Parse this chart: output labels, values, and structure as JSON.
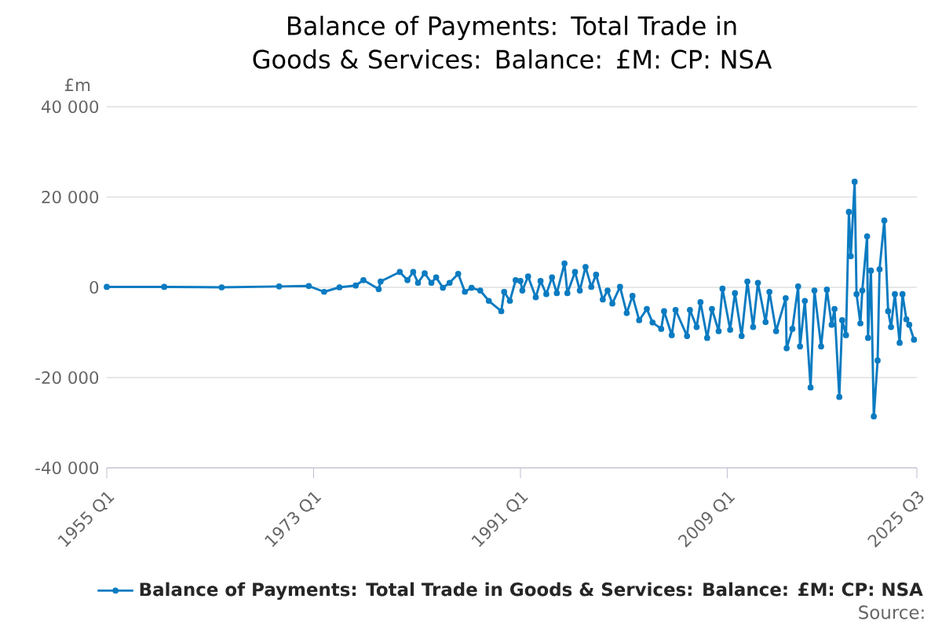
{
  "chart_data": {
    "type": "line",
    "title": "Balance of Payments: Total Trade in Goods & Services: Balance: £M: CP: NSA",
    "ylabel": "£m",
    "annotations": [
      "Source:"
    ],
    "x": [
      "1955-01",
      "1960-01",
      "1965-01",
      "1970-01",
      "1972-08",
      "1973-12",
      "1975-04",
      "1976-09",
      "1977-05",
      "1978-09",
      "1978-11",
      "1980-07",
      "1981-03",
      "1981-09",
      "1982-02",
      "1982-09",
      "1983-04",
      "1983-09",
      "1984-04",
      "1984-11",
      "1985-08",
      "1986-03",
      "1986-10",
      "1987-07",
      "1988-04",
      "1989-05",
      "1989-08",
      "1990-02",
      "1990-08",
      "1991-01",
      "1991-03",
      "1991-09",
      "1992-05",
      "1992-10",
      "1993-04",
      "1993-10",
      "1994-03",
      "1994-11",
      "1995-02",
      "1995-10",
      "1996-03",
      "1996-09",
      "1997-03",
      "1997-08",
      "1998-03",
      "1998-08",
      "1999-01",
      "1999-09",
      "2000-04",
      "2000-10",
      "2001-05",
      "2002-01",
      "2002-07",
      "2003-04",
      "2003-07",
      "2004-03",
      "2004-07",
      "2005-07",
      "2005-10",
      "2006-05",
      "2006-09",
      "2007-04",
      "2007-09",
      "2008-04",
      "2008-08",
      "2009-04",
      "2009-09",
      "2010-04",
      "2010-10",
      "2011-04",
      "2011-09",
      "2012-05",
      "2012-09",
      "2013-04",
      "2014-02",
      "2014-03",
      "2014-09",
      "2015-03",
      "2015-05",
      "2015-10",
      "2016-04",
      "2016-08",
      "2017-03",
      "2017-09",
      "2018-02",
      "2018-05",
      "2018-10",
      "2019-01",
      "2019-05",
      "2019-08",
      "2019-10",
      "2020-02",
      "2020-04",
      "2020-08",
      "2020-10",
      "2021-03",
      "2021-04",
      "2021-07",
      "2021-10",
      "2022-02",
      "2022-04",
      "2022-09",
      "2023-01",
      "2023-04",
      "2023-08",
      "2024-01",
      "2024-04",
      "2024-08",
      "2024-11",
      "2025-04"
    ],
    "series": [
      {
        "name": "Balance of Payments: Total Trade in Goods & Services: Balance: £M: CP: NSA",
        "color": "#0b7bc1",
        "values": [
          100,
          100,
          0,
          200,
          300,
          -1000,
          0,
          400,
          1600,
          -400,
          1300,
          3400,
          1600,
          3400,
          1000,
          3100,
          1000,
          2200,
          -100,
          1000,
          3000,
          -1000,
          -100,
          -700,
          -3000,
          -5300,
          -1000,
          -3000,
          1600,
          1400,
          -700,
          2400,
          -2200,
          1400,
          -1500,
          2200,
          -1300,
          5300,
          -1300,
          3400,
          -700,
          4500,
          100,
          2800,
          -2700,
          -700,
          -3600,
          100,
          -5700,
          -1900,
          -7300,
          -4800,
          -7800,
          -9200,
          -5300,
          -10600,
          -5000,
          -10800,
          -5000,
          -8800,
          -3300,
          -11200,
          -4800,
          -9700,
          -300,
          -9400,
          -1300,
          -10800,
          1300,
          -8800,
          1000,
          -7700,
          -1000,
          -9700,
          -2400,
          -13500,
          -9200,
          200,
          -13100,
          -3000,
          -22200,
          -700,
          -13100,
          -500,
          -8300,
          -4800,
          -24300,
          -7300,
          -10600,
          16700,
          6900,
          23400,
          -1500,
          -8000,
          -700,
          11300,
          -11200,
          3700,
          -28600,
          -16200,
          4000,
          14800,
          -5300,
          -8800,
          -1500,
          -12300,
          -1500,
          -7100,
          -8300,
          -11600
        ]
      }
    ],
    "xlim": [
      "1955-01",
      "2025-07"
    ],
    "xticks": [
      {
        "value": "1955-01",
        "label": "1955 Q1"
      },
      {
        "value": "1973-01",
        "label": "1973 Q1"
      },
      {
        "value": "1991-01",
        "label": "1991 Q1"
      },
      {
        "value": "2009-01",
        "label": "2009 Q1"
      },
      {
        "value": "2025-07",
        "label": "2025 Q3"
      }
    ],
    "ylim": [
      -40000,
      40000
    ],
    "yticks": [
      {
        "value": -40000,
        "label": "-40 000"
      },
      {
        "value": -20000,
        "label": "-20 000"
      },
      {
        "value": 0,
        "label": "0"
      },
      {
        "value": 20000,
        "label": "20 000"
      },
      {
        "value": 40000,
        "label": "40 000"
      }
    ],
    "grid": "y",
    "legend": "bottom",
    "marker": "circle",
    "line_style": "solid"
  }
}
